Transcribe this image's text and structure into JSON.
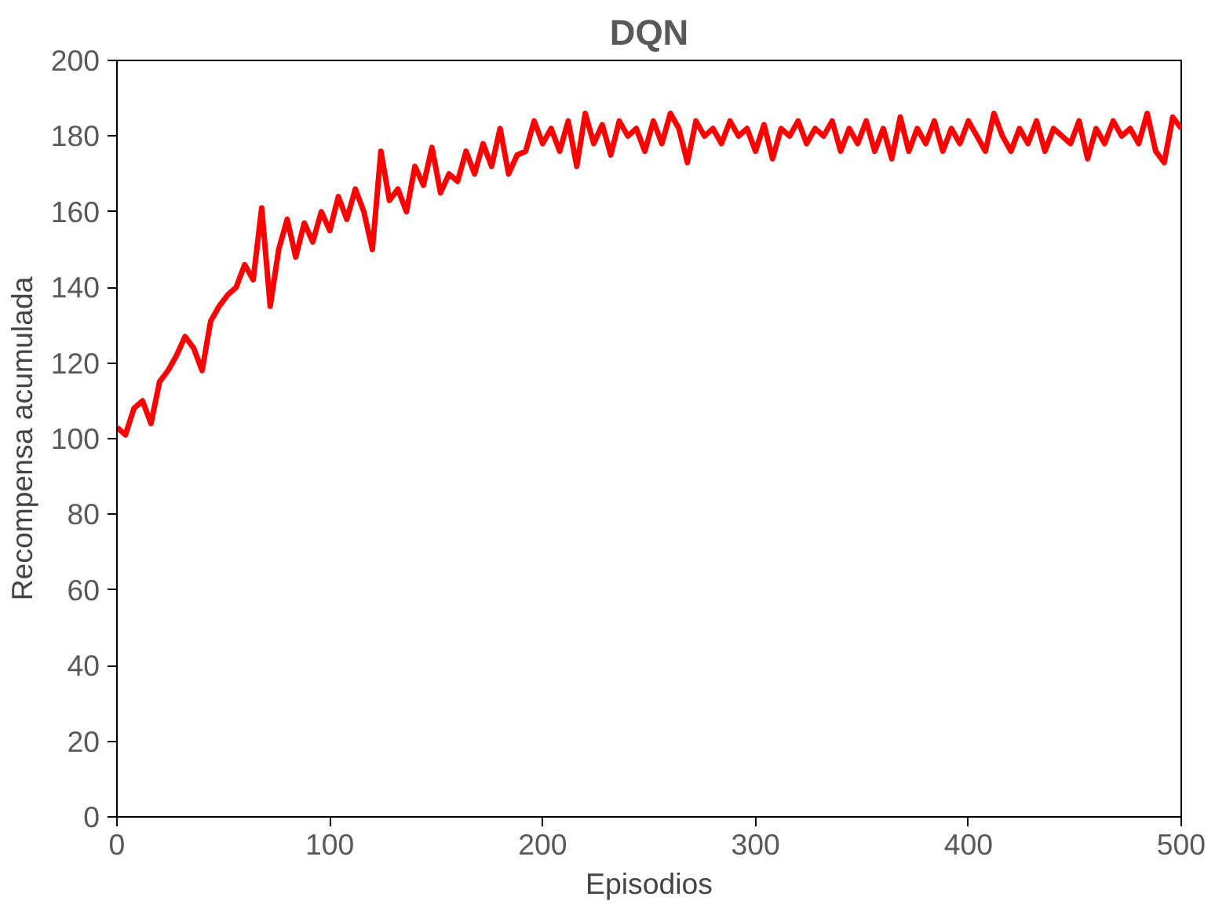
{
  "chart_data": {
    "type": "line",
    "title": "DQN",
    "xlabel": "Episodios",
    "ylabel": "Recompensa acumulada",
    "x": [
      0,
      4,
      8,
      12,
      16,
      20,
      24,
      28,
      32,
      36,
      40,
      44,
      48,
      52,
      56,
      60,
      64,
      68,
      72,
      76,
      80,
      84,
      88,
      92,
      96,
      100,
      104,
      108,
      112,
      116,
      120,
      124,
      128,
      132,
      136,
      140,
      144,
      148,
      152,
      156,
      160,
      164,
      168,
      172,
      176,
      180,
      184,
      188,
      192,
      196,
      200,
      204,
      208,
      212,
      216,
      220,
      224,
      228,
      232,
      236,
      240,
      244,
      248,
      252,
      256,
      260,
      264,
      268,
      272,
      276,
      280,
      284,
      288,
      292,
      296,
      300,
      304,
      308,
      312,
      316,
      320,
      324,
      328,
      332,
      336,
      340,
      344,
      348,
      352,
      356,
      360,
      364,
      368,
      372,
      376,
      380,
      384,
      388,
      392,
      396,
      400,
      404,
      408,
      412,
      416,
      420,
      424,
      428,
      432,
      436,
      440,
      444,
      448,
      452,
      456,
      460,
      464,
      468,
      472,
      476,
      480,
      484,
      488,
      492,
      496,
      500
    ],
    "series": [
      {
        "color": "#ff0000",
        "values": [
          103,
          101,
          108,
          110,
          104,
          115,
          118,
          122,
          127,
          124,
          118,
          131,
          135,
          138,
          140,
          146,
          142,
          161,
          135,
          150,
          158,
          148,
          157,
          152,
          160,
          155,
          164,
          158,
          166,
          160,
          150,
          176,
          163,
          166,
          160,
          172,
          167,
          177,
          165,
          170,
          168,
          176,
          170,
          178,
          172,
          182,
          170,
          175,
          176,
          184,
          178,
          182,
          176,
          184,
          172,
          186,
          178,
          183,
          175,
          184,
          180,
          182,
          176,
          184,
          178,
          186,
          182,
          173,
          184,
          180,
          182,
          178,
          184,
          180,
          182,
          176,
          183,
          174,
          182,
          180,
          184,
          178,
          182,
          180,
          184,
          176,
          182,
          178,
          184,
          176,
          182,
          174,
          185,
          176,
          182,
          178,
          184,
          176,
          182,
          178,
          184,
          180,
          176,
          186,
          180,
          176,
          182,
          178,
          184,
          176,
          182,
          180,
          178,
          184,
          174,
          182,
          178,
          184,
          180,
          182,
          178,
          186,
          176,
          173,
          185,
          182
        ]
      }
    ],
    "xlim": [
      0,
      500
    ],
    "xticks": [
      0,
      100,
      200,
      300,
      400,
      500
    ],
    "ylim": [
      0,
      200
    ],
    "yticks": [
      0,
      20,
      40,
      60,
      80,
      100,
      120,
      140,
      160,
      180,
      200
    ],
    "grid": false,
    "marker": "none",
    "line_style": "solid"
  }
}
